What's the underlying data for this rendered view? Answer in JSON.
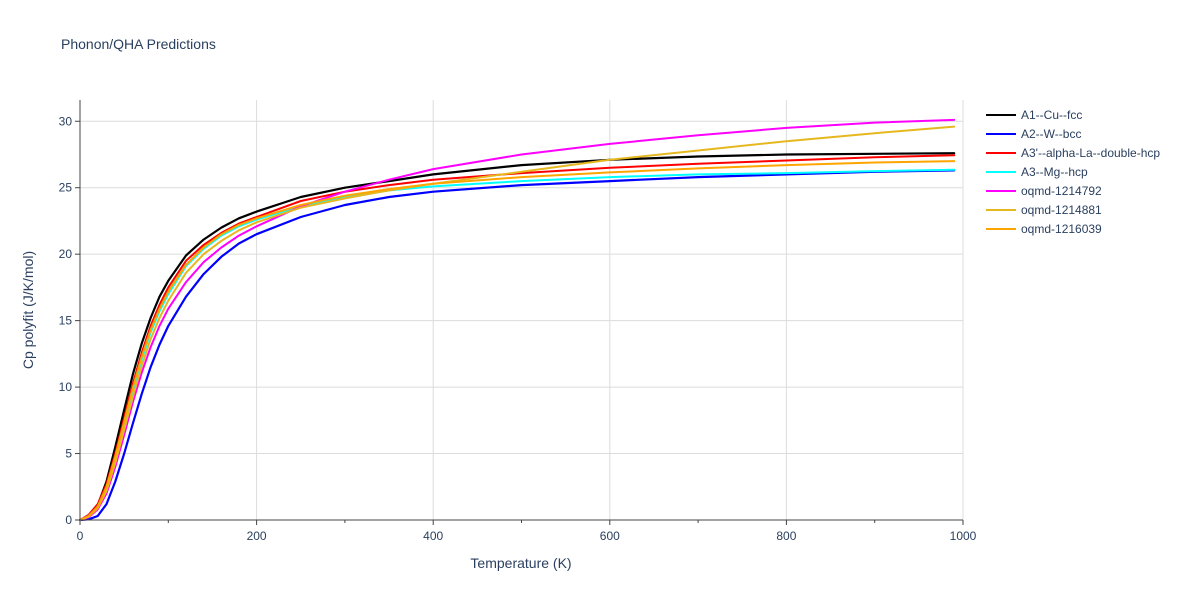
{
  "chart_data": {
    "type": "line",
    "title": "Phonon/QHA Predictions",
    "xlabel": "Temperature (K)",
    "ylabel": "Cp polyfit (J/K/mol)",
    "xlim": [
      0,
      1000
    ],
    "ylim": [
      0,
      31.6
    ],
    "xticks": [
      0,
      200,
      400,
      600,
      800,
      1000
    ],
    "yticks": [
      0,
      5,
      10,
      15,
      20,
      25,
      30
    ],
    "grid": true,
    "legend_position": "right",
    "series": [
      {
        "name": "A1--Cu--fcc",
        "color": "#000000",
        "width": 2.2,
        "x": [
          0,
          10,
          20,
          30,
          40,
          50,
          60,
          70,
          80,
          90,
          100,
          120,
          140,
          160,
          180,
          200,
          250,
          300,
          350,
          400,
          500,
          600,
          700,
          800,
          900,
          990
        ],
        "y": [
          0,
          0.3,
          1.1,
          2.9,
          5.5,
          8.3,
          11.0,
          13.3,
          15.2,
          16.8,
          18.0,
          19.9,
          21.1,
          22.0,
          22.7,
          23.2,
          24.3,
          25.0,
          25.5,
          26.0,
          26.7,
          27.1,
          27.35,
          27.5,
          27.55,
          27.6
        ]
      },
      {
        "name": "A2--W--bcc",
        "color": "#0000ff",
        "width": 2.2,
        "x": [
          0,
          10,
          20,
          30,
          40,
          50,
          60,
          70,
          80,
          90,
          100,
          120,
          140,
          160,
          180,
          200,
          250,
          300,
          350,
          400,
          500,
          600,
          700,
          800,
          900,
          990
        ],
        "y": [
          0,
          0.05,
          0.3,
          1.2,
          2.9,
          5.0,
          7.3,
          9.5,
          11.5,
          13.2,
          14.6,
          16.8,
          18.5,
          19.8,
          20.8,
          21.5,
          22.8,
          23.7,
          24.3,
          24.7,
          25.2,
          25.5,
          25.8,
          26.0,
          26.2,
          26.3
        ]
      },
      {
        "name": "A3'--alpha-La--double-hcp",
        "color": "#ff0000",
        "width": 2.0,
        "x": [
          0,
          10,
          20,
          30,
          40,
          50,
          60,
          70,
          80,
          90,
          100,
          120,
          140,
          160,
          180,
          200,
          250,
          300,
          350,
          400,
          500,
          600,
          700,
          800,
          900,
          990
        ],
        "y": [
          0,
          0.4,
          1.2,
          2.7,
          5.0,
          7.7,
          10.3,
          12.6,
          14.6,
          16.2,
          17.5,
          19.5,
          20.7,
          21.6,
          22.3,
          22.8,
          24.0,
          24.7,
          25.2,
          25.6,
          26.1,
          26.5,
          26.8,
          27.05,
          27.3,
          27.45
        ]
      },
      {
        "name": "A3--Mg--hcp",
        "color": "#00ffff",
        "width": 2.0,
        "x": [
          0,
          10,
          20,
          30,
          40,
          50,
          60,
          70,
          80,
          90,
          100,
          120,
          140,
          160,
          180,
          200,
          250,
          300,
          350,
          400,
          500,
          600,
          700,
          800,
          900,
          990
        ],
        "y": [
          0,
          0.3,
          1.0,
          2.4,
          4.6,
          7.2,
          9.8,
          12.1,
          14.1,
          15.7,
          17.0,
          19.1,
          20.4,
          21.4,
          22.1,
          22.6,
          23.6,
          24.3,
          24.8,
          25.1,
          25.5,
          25.8,
          26.0,
          26.1,
          26.25,
          26.35
        ]
      },
      {
        "name": "oqmd-1214792",
        "color": "#ff00ff",
        "width": 2.0,
        "x": [
          0,
          10,
          20,
          30,
          40,
          50,
          60,
          70,
          80,
          90,
          100,
          120,
          140,
          160,
          180,
          200,
          250,
          300,
          350,
          400,
          500,
          600,
          700,
          800,
          900,
          990
        ],
        "y": [
          0,
          0.2,
          0.8,
          2.0,
          4.0,
          6.4,
          8.9,
          11.1,
          13.0,
          14.6,
          15.9,
          17.9,
          19.4,
          20.5,
          21.4,
          22.1,
          23.6,
          24.7,
          25.6,
          26.4,
          27.5,
          28.3,
          28.95,
          29.5,
          29.9,
          30.1
        ]
      },
      {
        "name": "oqmd-1214881",
        "color": "#e6b820",
        "width": 2.0,
        "x": [
          0,
          10,
          20,
          30,
          40,
          50,
          60,
          70,
          80,
          90,
          100,
          120,
          140,
          160,
          180,
          200,
          250,
          300,
          350,
          400,
          500,
          600,
          700,
          800,
          900,
          990
        ],
        "y": [
          0,
          0.25,
          0.9,
          2.2,
          4.3,
          6.8,
          9.3,
          11.6,
          13.6,
          15.2,
          16.5,
          18.6,
          20.0,
          21.0,
          21.8,
          22.4,
          23.5,
          24.2,
          24.8,
          25.3,
          26.2,
          27.1,
          27.8,
          28.5,
          29.1,
          29.6
        ]
      },
      {
        "name": "oqmd-1216039",
        "color": "#ffa500",
        "width": 2.0,
        "x": [
          0,
          10,
          20,
          30,
          40,
          50,
          60,
          70,
          80,
          90,
          100,
          120,
          140,
          160,
          180,
          200,
          250,
          300,
          350,
          400,
          500,
          600,
          700,
          800,
          900,
          990
        ],
        "y": [
          0,
          0.3,
          1.0,
          2.5,
          4.8,
          7.4,
          10.0,
          12.3,
          14.3,
          15.9,
          17.2,
          19.2,
          20.5,
          21.5,
          22.2,
          22.7,
          23.7,
          24.4,
          24.9,
          25.3,
          25.8,
          26.15,
          26.45,
          26.7,
          26.9,
          27.0
        ]
      }
    ]
  }
}
